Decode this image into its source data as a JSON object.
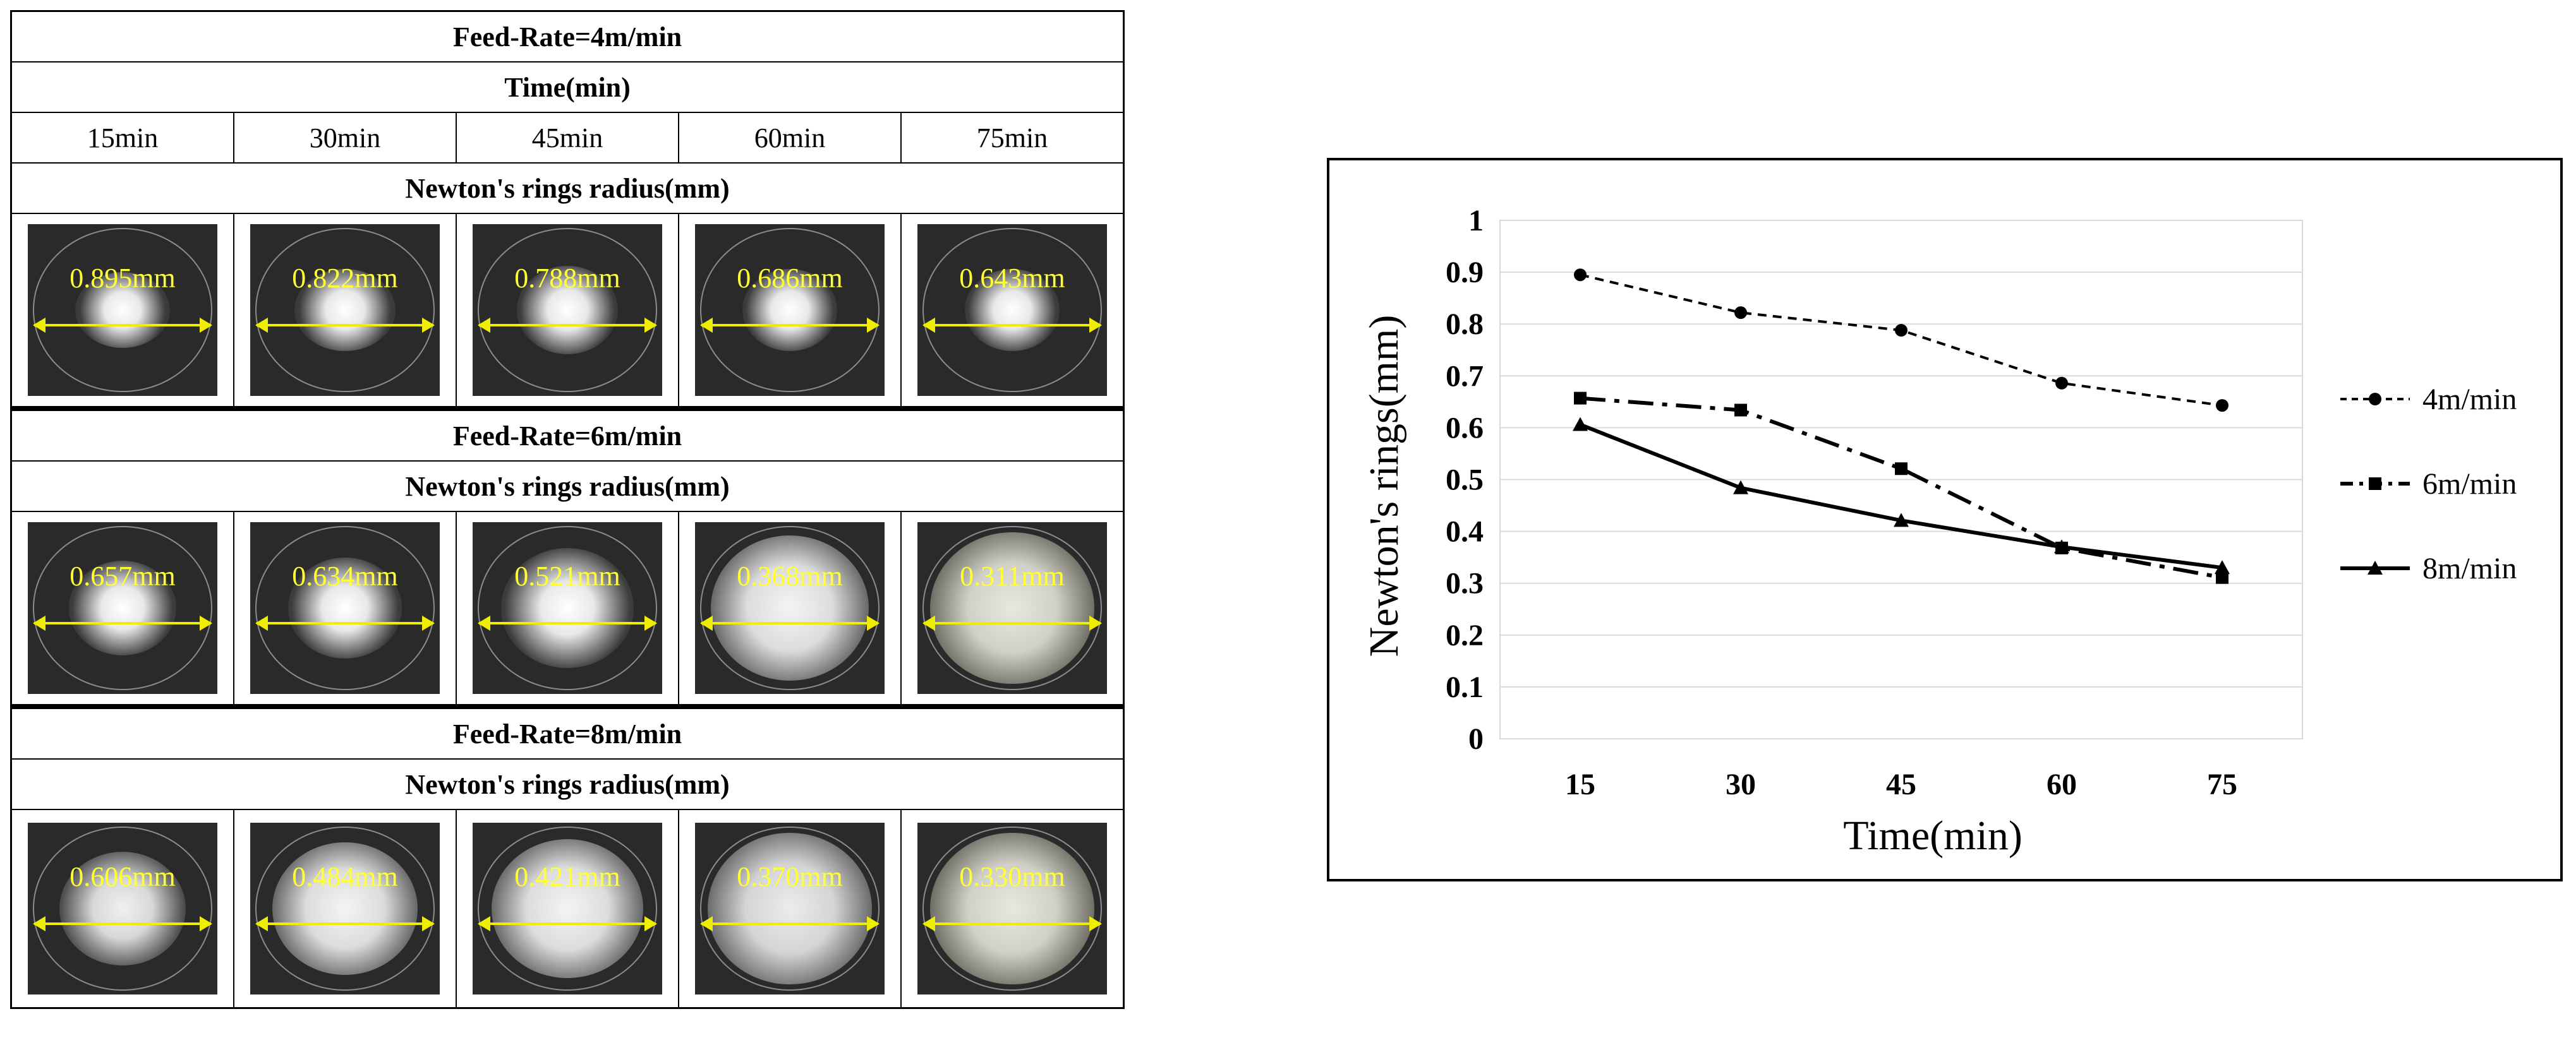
{
  "table": {
    "section_titles": [
      "Feed-Rate=4m/min",
      "Feed-Rate=6m/min",
      "Feed-Rate=8m/min"
    ],
    "time_header": "Time(min)",
    "time_labels": [
      "15min",
      "30min",
      "45min",
      "60min",
      "75min"
    ],
    "radius_header": "Newton's rings radius(mm)",
    "rates": [
      {
        "measurements": [
          "0.895mm",
          "0.822mm",
          "0.788mm",
          "0.686mm",
          "0.643mm"
        ]
      },
      {
        "measurements": [
          "0.657mm",
          "0.634mm",
          "0.521mm",
          "0.368mm",
          "0.311mm"
        ]
      },
      {
        "measurements": [
          "0.606mm",
          "0.484mm",
          "0.421mm",
          "0.370mm",
          "0.330mm"
        ]
      }
    ]
  },
  "chart_data": {
    "type": "line",
    "title": "",
    "xlabel": "Time(min)",
    "ylabel": "Newton's rings(mm)",
    "categories": [
      "15",
      "30",
      "45",
      "60",
      "75"
    ],
    "ylim": [
      0,
      1
    ],
    "yticks": [
      "0",
      "0.1",
      "0.2",
      "0.3",
      "0.4",
      "0.5",
      "0.6",
      "0.7",
      "0.8",
      "0.9",
      "1"
    ],
    "grid": true,
    "legend": "right",
    "series": [
      {
        "name": "4m/min",
        "values": [
          0.895,
          0.822,
          0.788,
          0.686,
          0.643
        ],
        "marker": "circle",
        "dash": "dashed"
      },
      {
        "name": "6m/min",
        "values": [
          0.657,
          0.634,
          0.521,
          0.368,
          0.311
        ],
        "marker": "square",
        "dash": "dashdot"
      },
      {
        "name": "8m/min",
        "values": [
          0.606,
          0.484,
          0.421,
          0.37,
          0.33
        ],
        "marker": "triangle",
        "dash": "solid"
      }
    ]
  }
}
